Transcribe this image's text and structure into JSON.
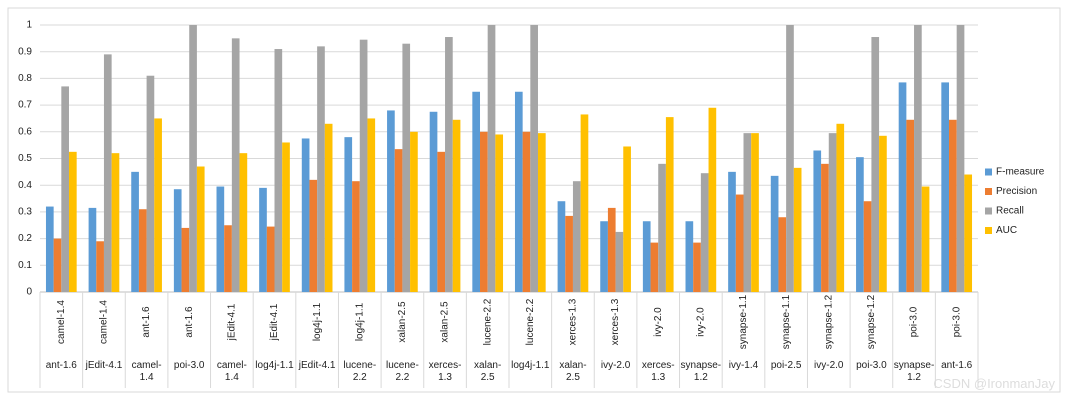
{
  "chart_data": {
    "type": "bar",
    "categories": [
      "camel-1.4",
      "camel-1.4",
      "ant-1.6",
      "ant-1.6",
      "jEdit-4.1",
      "jEdit-4.1",
      "log4j-1.1",
      "log4j-1.1",
      "xalan-2.5",
      "xalan-2.5",
      "lucene-2.2",
      "lucene-2.2",
      "xerces-1.3",
      "xerces-1.3",
      "ivy-2.0",
      "ivy-2.0",
      "synapse-1.1",
      "synapse-1.1",
      "synapse-1.2",
      "synapse-1.2",
      "poi-3.0",
      "poi-3.0"
    ],
    "category_groups": [
      "ant-1.6",
      "jEdit-4.1",
      "camel-1.4",
      "poi-3.0",
      "camel-1.4",
      "log4j-1.1",
      "jEdit-4.1",
      "lucene-2.2",
      "lucene-2.2",
      "xerces-1.3",
      "xalan-2.5",
      "log4j-1.1",
      "xalan-2.5",
      "ivy-2.0",
      "xerces-1.3",
      "synapse-1.2",
      "ivy-1.4",
      "poi-2.5",
      "ivy-2.0",
      "poi-3.0",
      "synapse-1.2",
      "ant-1.6"
    ],
    "series": [
      {
        "name": "F-measure",
        "color": "#5b9bd5",
        "values": [
          0.32,
          0.315,
          0.45,
          0.385,
          0.395,
          0.39,
          0.575,
          0.58,
          0.68,
          0.675,
          0.75,
          0.75,
          0.34,
          0.265,
          0.265,
          0.265,
          0.45,
          0.435,
          0.53,
          0.505,
          0.785,
          0.785
        ]
      },
      {
        "name": "Precision",
        "color": "#ed7d31",
        "values": [
          0.2,
          0.19,
          0.31,
          0.24,
          0.25,
          0.245,
          0.42,
          0.415,
          0.535,
          0.525,
          0.6,
          0.6,
          0.285,
          0.315,
          0.185,
          0.185,
          0.365,
          0.28,
          0.48,
          0.34,
          0.645,
          0.645
        ]
      },
      {
        "name": "Recall",
        "color": "#a5a5a5",
        "values": [
          0.77,
          0.89,
          0.81,
          1.0,
          0.95,
          0.91,
          0.92,
          0.945,
          0.93,
          0.955,
          1.0,
          1.0,
          0.415,
          0.225,
          0.48,
          0.445,
          0.595,
          1.0,
          0.595,
          0.955,
          1.0,
          1.0
        ]
      },
      {
        "name": "AUC",
        "color": "#ffc000",
        "values": [
          0.525,
          0.52,
          0.65,
          0.47,
          0.52,
          0.56,
          0.63,
          0.65,
          0.6,
          0.645,
          0.59,
          0.595,
          0.665,
          0.545,
          0.655,
          0.69,
          0.595,
          0.465,
          0.63,
          0.585,
          0.395,
          0.44
        ]
      }
    ],
    "ylim": [
      0,
      1
    ],
    "yticks": [
      0,
      0.1,
      0.2,
      0.3,
      0.4,
      0.5,
      0.6,
      0.7,
      0.8,
      0.9,
      1
    ],
    "grid": true,
    "legend": "right"
  },
  "watermark": "CSDN @IronmanJay"
}
